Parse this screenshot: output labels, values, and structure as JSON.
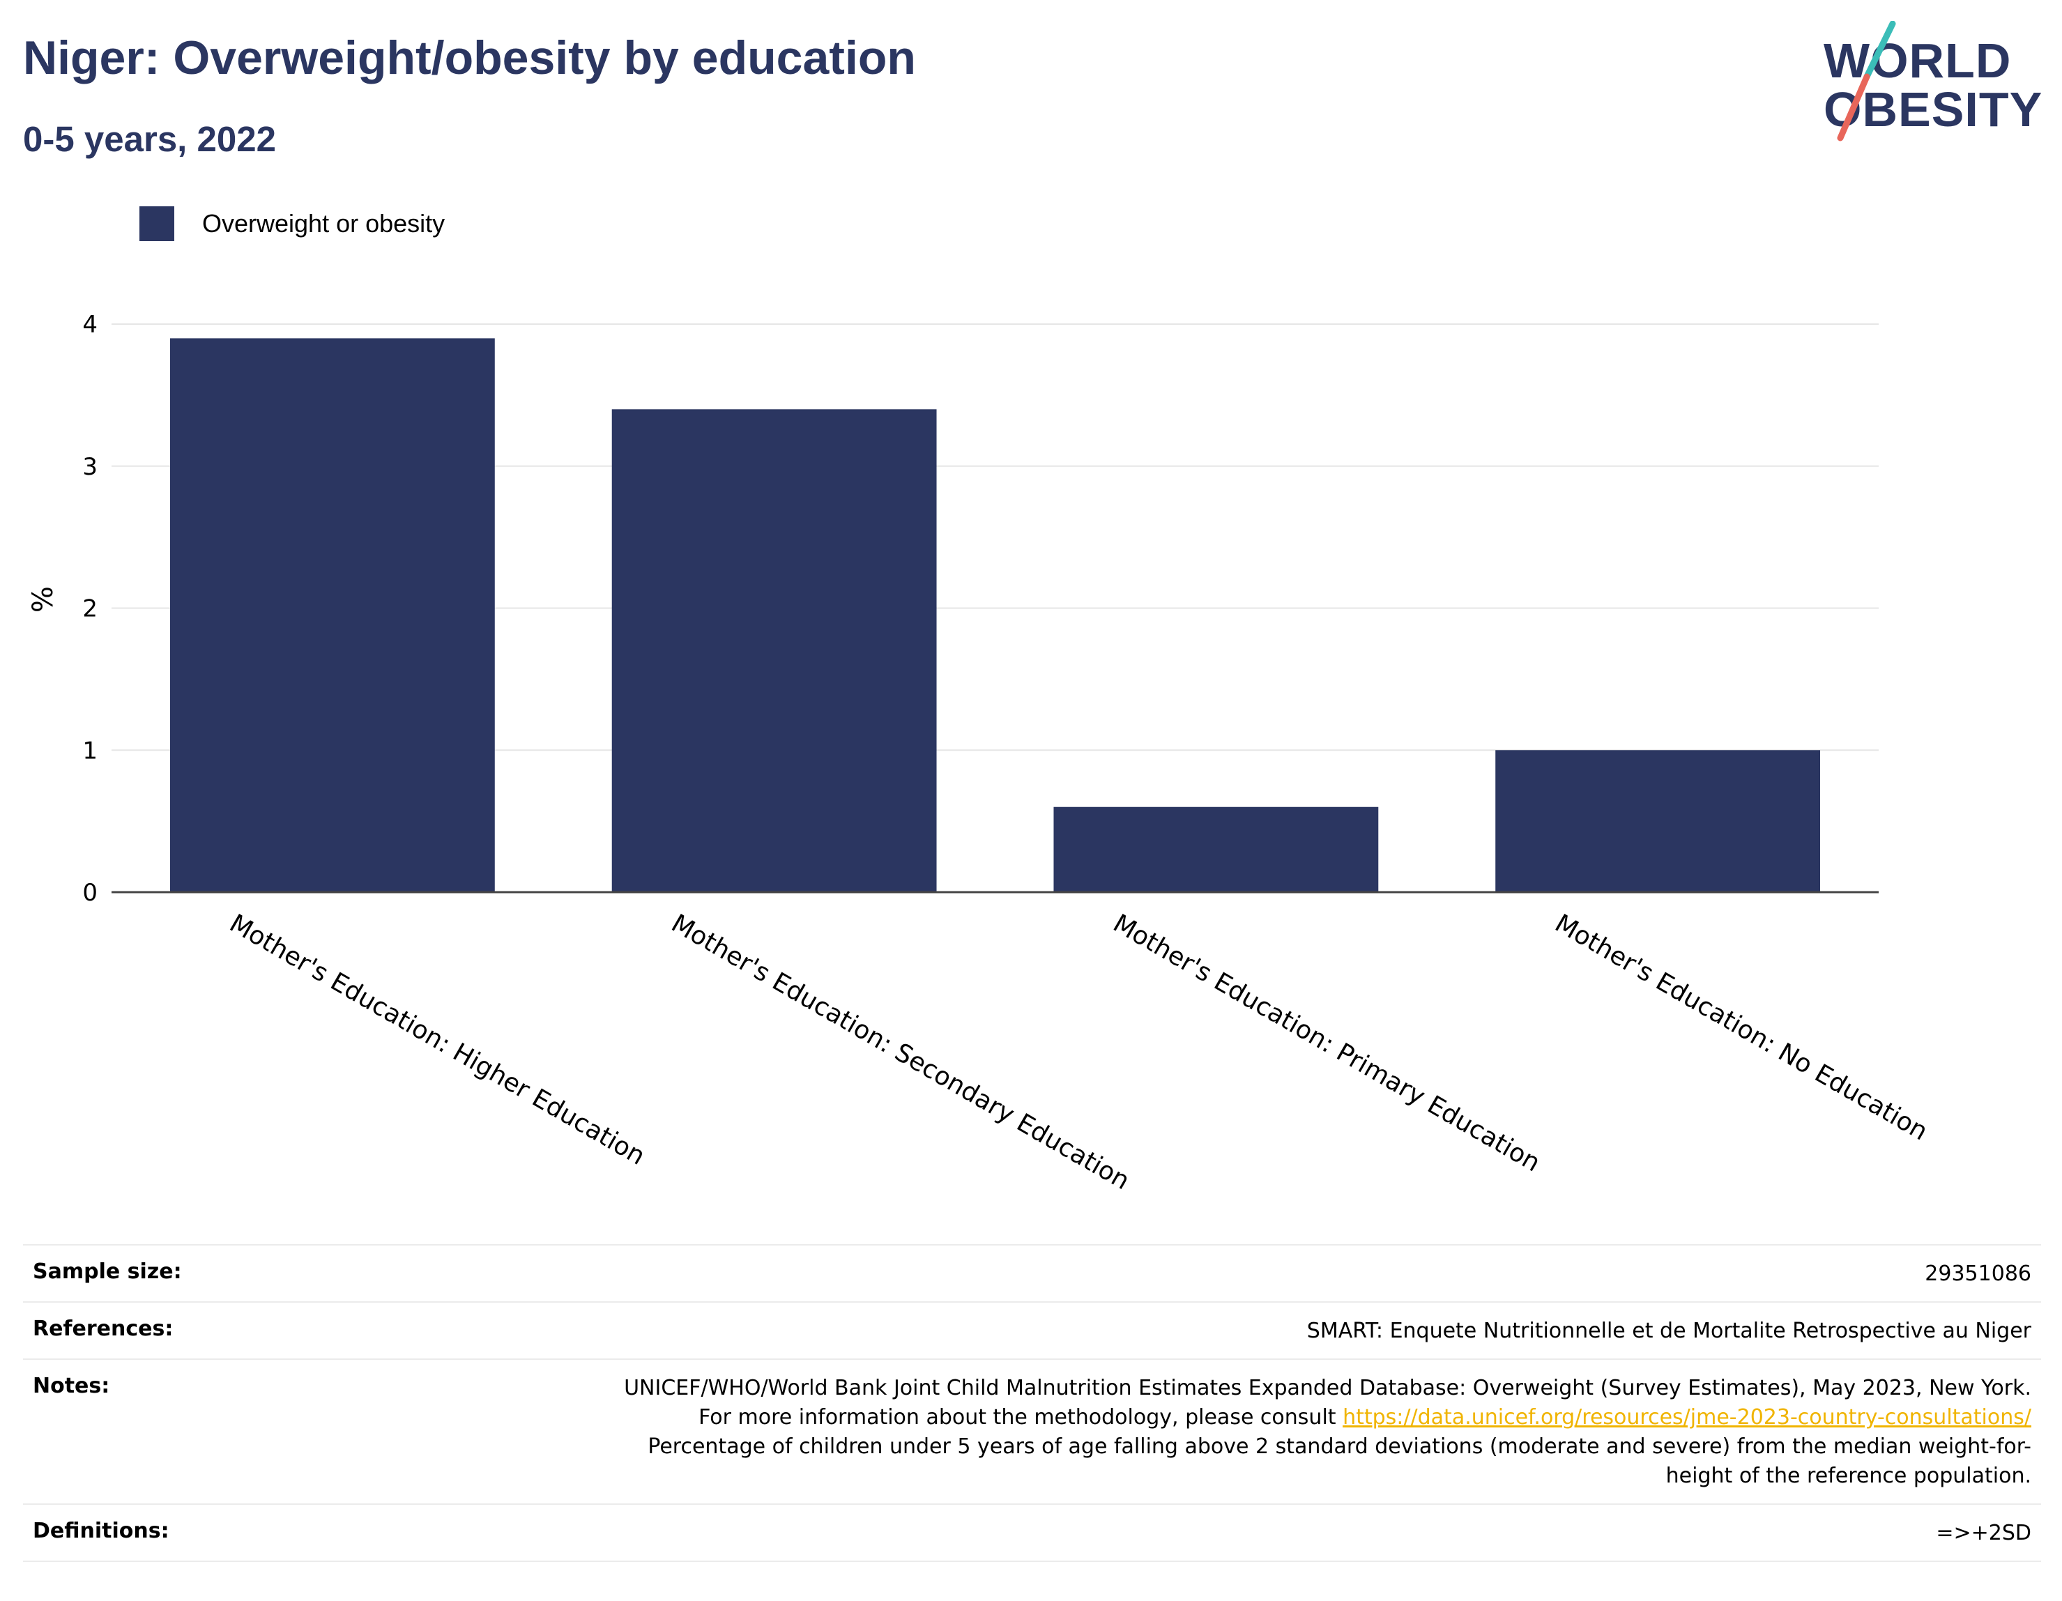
{
  "header": {
    "title": "Niger: Overweight/obesity by education",
    "subtitle": "0-5 years, 2022"
  },
  "logo": {
    "line1": "WORLD",
    "line2": "OBESITY",
    "slash_colors": [
      "#3bbdb8",
      "#e8665a"
    ]
  },
  "colors": {
    "bar": "#2b3661",
    "grid": "#e6e6e6",
    "axis": "#444444",
    "link": "#f0b400"
  },
  "chart_data": {
    "type": "bar",
    "categories": [
      "Mother's Education: Higher Education",
      "Mother's Education: Secondary Education",
      "Mother's Education: Primary Education",
      "Mother's Education: No Education"
    ],
    "series": [
      {
        "name": "Overweight or obesity",
        "values": [
          3.9,
          3.4,
          0.6,
          1.0
        ]
      }
    ],
    "ylabel": "%",
    "xlabel": "",
    "ylim": [
      0,
      4
    ],
    "yticks": [
      0,
      1,
      2,
      3,
      4
    ],
    "grid": true,
    "legend": "top-left"
  },
  "info_table": {
    "sample_size_label": "Sample size:",
    "sample_size_value": "29351086",
    "references_label": "References:",
    "references_value": "SMART: Enquete Nutritionnelle et de Mortalite Retrospective au Niger",
    "notes_label": "Notes:",
    "notes_text1": "UNICEF/WHO/World Bank Joint Child Malnutrition Estimates Expanded Database: Overweight (Survey Estimates), May 2023, New York. For more information about the methodology, please consult",
    "notes_link": "https://data.unicef.org/resources/jme-2023-country-consultations/",
    "notes_text2": "Percentage of children under 5 years of age falling above 2 standard deviations (moderate and severe) from the median weight-for-height of the reference population.",
    "definitions_label": "Definitions:",
    "definitions_value": "=>+2SD"
  }
}
